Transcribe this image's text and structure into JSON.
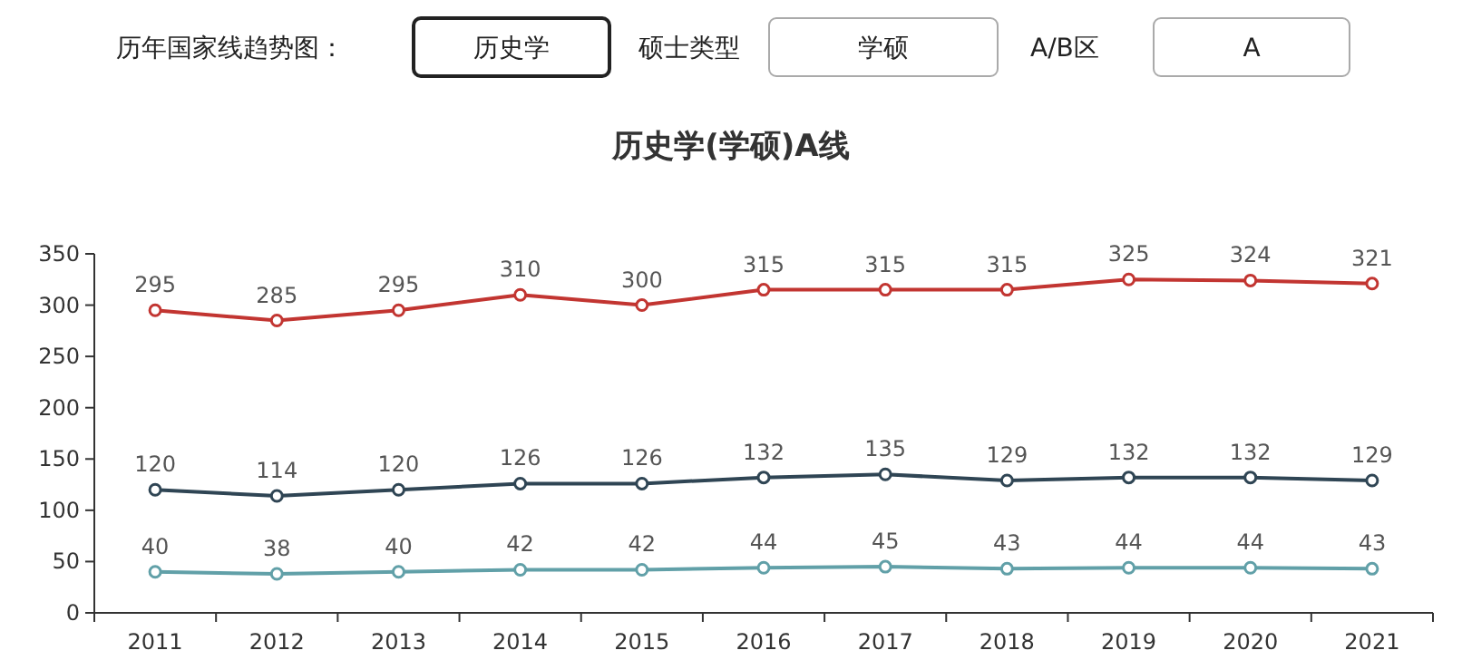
{
  "chart_data": {
    "type": "line",
    "title": "历史学(学硕)A线",
    "annotations": [
      "历年国家线趋势图：",
      "历史学",
      "硕士类型",
      "学硕",
      "A/B区",
      "A"
    ],
    "categories": [
      "2011",
      "2012",
      "2013",
      "2014",
      "2015",
      "2016",
      "2017",
      "2018",
      "2019",
      "2020",
      "2021"
    ],
    "series": [
      {
        "color": "#c23531",
        "values": [
          295,
          285,
          295,
          310,
          300,
          315,
          315,
          315,
          325,
          324,
          321
        ]
      },
      {
        "color": "#2f4554",
        "values": [
          120,
          114,
          120,
          126,
          126,
          132,
          135,
          129,
          132,
          132,
          129
        ]
      },
      {
        "color": "#61a0a8",
        "values": [
          40,
          38,
          40,
          42,
          42,
          44,
          45,
          43,
          44,
          44,
          43
        ]
      }
    ],
    "ylim": [
      0,
      350
    ],
    "yticks": [
      0,
      50,
      100,
      150,
      200,
      250,
      300,
      350
    ],
    "grid": false,
    "data_labels": true,
    "marker": "circle",
    "line_style": "solid"
  }
}
